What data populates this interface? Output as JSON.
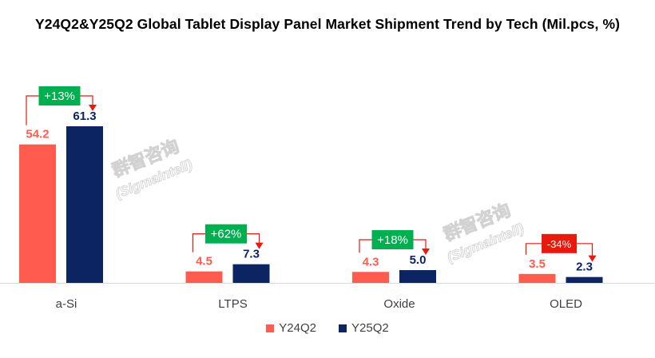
{
  "chart_data": {
    "type": "bar",
    "title": "Y24Q2&Y25Q2 Global Tablet Display Panel Market Shipment Trend by Tech (Mil.pcs, %)",
    "categories": [
      "a-Si",
      "LTPS",
      "Oxide",
      "OLED"
    ],
    "series": [
      {
        "name": "Y24Q2",
        "values": [
          54.2,
          4.5,
          4.3,
          3.5
        ],
        "labels": [
          "54.2",
          "4.5",
          "4.3",
          "3.5"
        ],
        "color": "#FF5B4F"
      },
      {
        "name": "Y25Q2",
        "values": [
          61.3,
          7.3,
          5.0,
          2.3
        ],
        "labels": [
          "61.3",
          "7.3",
          "5.0",
          "2.3"
        ],
        "color": "#0C2461"
      }
    ],
    "changes": [
      {
        "label": "+13%",
        "direction": "up",
        "color": "#00B050"
      },
      {
        "label": "+62%",
        "direction": "up",
        "color": "#00B050"
      },
      {
        "label": "+18%",
        "direction": "up",
        "color": "#00B050"
      },
      {
        "label": "-34%",
        "direction": "down",
        "color": "#E8190E"
      }
    ],
    "ylim": [
      0,
      70
    ],
    "grid": false,
    "legend_position": "bottom",
    "watermark": "群智咨询 (Sigmaintell)"
  }
}
